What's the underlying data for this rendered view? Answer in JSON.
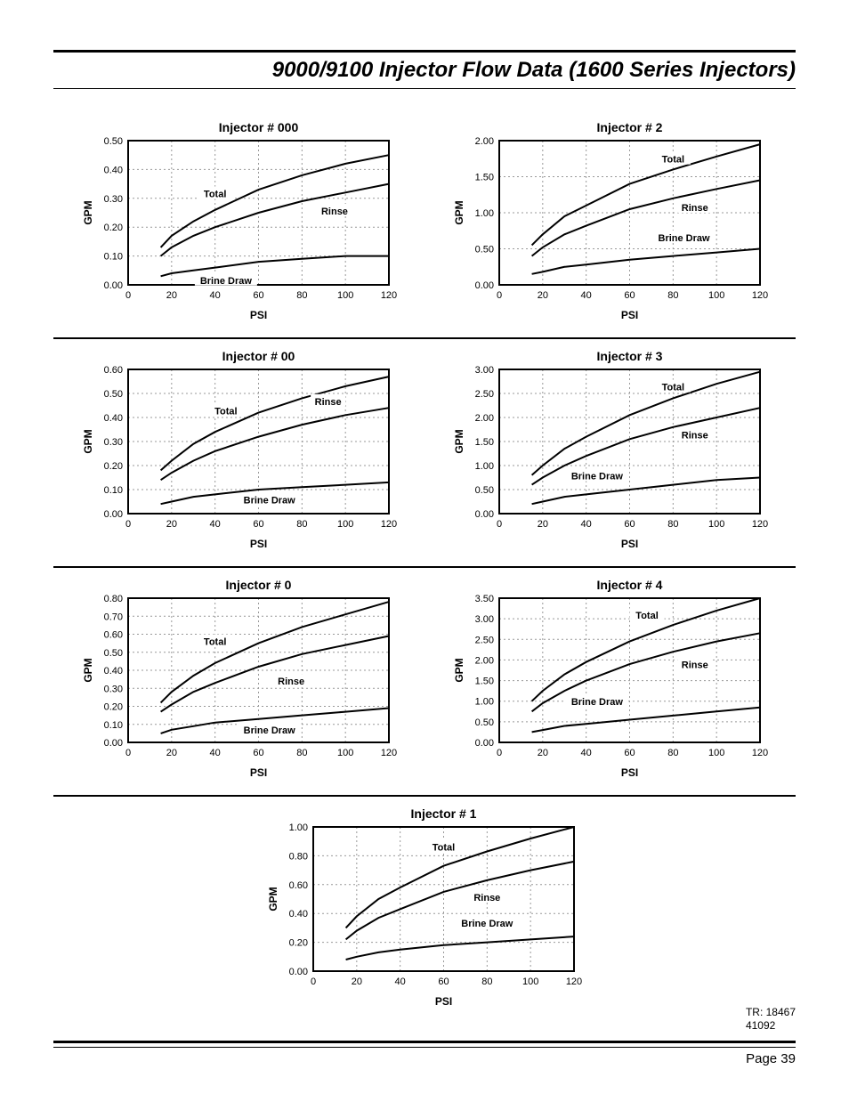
{
  "page_title": "9000/9100 Injector Flow Data (1600 Series Injectors)",
  "chart_colors": {
    "line": "#000000",
    "grid": "#999999",
    "bg": "#ffffff",
    "text": "#000000"
  },
  "axis_titles": {
    "x": "PSI",
    "y": "GPM"
  },
  "series_labels": {
    "total": "Total",
    "rinse": "Rinse",
    "brine": "Brine Draw"
  },
  "xlim": [
    0,
    120
  ],
  "xticks": [
    0,
    20,
    40,
    60,
    80,
    100,
    120
  ],
  "title_fontsize": 14,
  "axis_fontsize": 12,
  "tick_fontsize": 11,
  "label_fontsize": 11,
  "line_width": 2,
  "charts": [
    {
      "id": "inj000",
      "title": "Injector # 000",
      "ylim": [
        0,
        0.5
      ],
      "yticks": [
        0.0,
        0.1,
        0.2,
        0.3,
        0.4,
        0.5
      ],
      "ytick_decimals": 2,
      "series": {
        "total": {
          "x": [
            15,
            20,
            30,
            40,
            60,
            80,
            100,
            120
          ],
          "y": [
            0.13,
            0.17,
            0.22,
            0.26,
            0.33,
            0.38,
            0.42,
            0.45
          ]
        },
        "rinse": {
          "x": [
            15,
            20,
            30,
            40,
            60,
            80,
            100,
            120
          ],
          "y": [
            0.1,
            0.13,
            0.17,
            0.2,
            0.25,
            0.29,
            0.32,
            0.35
          ]
        },
        "brine": {
          "x": [
            15,
            20,
            30,
            40,
            60,
            80,
            100,
            120
          ],
          "y": [
            0.03,
            0.04,
            0.05,
            0.06,
            0.08,
            0.09,
            0.1,
            0.1
          ]
        }
      },
      "label_pos": {
        "total": [
          40,
          0.31
        ],
        "rinse": [
          95,
          0.25
        ],
        "brine": [
          45,
          0.01
        ]
      }
    },
    {
      "id": "inj2",
      "title": "Injector # 2",
      "ylim": [
        0,
        2.0
      ],
      "yticks": [
        0.0,
        0.5,
        1.0,
        1.5,
        2.0
      ],
      "ytick_decimals": 2,
      "series": {
        "total": {
          "x": [
            15,
            20,
            30,
            40,
            60,
            80,
            100,
            120
          ],
          "y": [
            0.55,
            0.7,
            0.95,
            1.1,
            1.4,
            1.6,
            1.78,
            1.95
          ]
        },
        "rinse": {
          "x": [
            15,
            20,
            30,
            40,
            60,
            80,
            100,
            120
          ],
          "y": [
            0.4,
            0.52,
            0.7,
            0.82,
            1.05,
            1.2,
            1.33,
            1.45
          ]
        },
        "brine": {
          "x": [
            15,
            20,
            30,
            40,
            60,
            80,
            100,
            120
          ],
          "y": [
            0.15,
            0.18,
            0.25,
            0.28,
            0.35,
            0.4,
            0.45,
            0.5
          ]
        }
      },
      "label_pos": {
        "total": [
          80,
          1.72
        ],
        "rinse": [
          90,
          1.05
        ],
        "brine": [
          85,
          0.63
        ]
      }
    },
    {
      "id": "inj00",
      "title": "Injector # 00",
      "ylim": [
        0,
        0.6
      ],
      "yticks": [
        0.0,
        0.1,
        0.2,
        0.3,
        0.4,
        0.5,
        0.6
      ],
      "ytick_decimals": 2,
      "series": {
        "total": {
          "x": [
            15,
            20,
            30,
            40,
            60,
            80,
            100,
            120
          ],
          "y": [
            0.18,
            0.22,
            0.29,
            0.34,
            0.42,
            0.48,
            0.53,
            0.57
          ]
        },
        "rinse": {
          "x": [
            15,
            20,
            30,
            40,
            60,
            80,
            100,
            120
          ],
          "y": [
            0.14,
            0.17,
            0.22,
            0.26,
            0.32,
            0.37,
            0.41,
            0.44
          ]
        },
        "brine": {
          "x": [
            15,
            20,
            30,
            40,
            60,
            80,
            100,
            120
          ],
          "y": [
            0.04,
            0.05,
            0.07,
            0.08,
            0.1,
            0.11,
            0.12,
            0.13
          ]
        }
      },
      "label_pos": {
        "total": [
          45,
          0.42
        ],
        "rinse": [
          92,
          0.46
        ],
        "brine": [
          65,
          0.05
        ]
      }
    },
    {
      "id": "inj3",
      "title": "Injector # 3",
      "ylim": [
        0,
        3.0
      ],
      "yticks": [
        0.0,
        0.5,
        1.0,
        1.5,
        2.0,
        2.5,
        3.0
      ],
      "ytick_decimals": 2,
      "series": {
        "total": {
          "x": [
            15,
            20,
            30,
            40,
            60,
            80,
            100,
            120
          ],
          "y": [
            0.8,
            1.0,
            1.35,
            1.6,
            2.05,
            2.4,
            2.7,
            2.95
          ]
        },
        "rinse": {
          "x": [
            15,
            20,
            30,
            40,
            60,
            80,
            100,
            120
          ],
          "y": [
            0.6,
            0.75,
            1.0,
            1.2,
            1.55,
            1.8,
            2.0,
            2.2
          ]
        },
        "brine": {
          "x": [
            15,
            20,
            30,
            40,
            60,
            80,
            100,
            120
          ],
          "y": [
            0.2,
            0.25,
            0.35,
            0.4,
            0.5,
            0.6,
            0.7,
            0.75
          ]
        }
      },
      "label_pos": {
        "total": [
          80,
          2.6
        ],
        "rinse": [
          90,
          1.6
        ],
        "brine": [
          45,
          0.75
        ]
      }
    },
    {
      "id": "inj0",
      "title": "Injector # 0",
      "ylim": [
        0,
        0.8
      ],
      "yticks": [
        0.0,
        0.1,
        0.2,
        0.3,
        0.4,
        0.5,
        0.6,
        0.7,
        0.8
      ],
      "ytick_decimals": 2,
      "series": {
        "total": {
          "x": [
            15,
            20,
            30,
            40,
            60,
            80,
            100,
            120
          ],
          "y": [
            0.22,
            0.28,
            0.37,
            0.44,
            0.55,
            0.64,
            0.71,
            0.78
          ]
        },
        "rinse": {
          "x": [
            15,
            20,
            30,
            40,
            60,
            80,
            100,
            120
          ],
          "y": [
            0.17,
            0.21,
            0.28,
            0.33,
            0.42,
            0.49,
            0.54,
            0.59
          ]
        },
        "brine": {
          "x": [
            15,
            20,
            30,
            40,
            60,
            80,
            100,
            120
          ],
          "y": [
            0.05,
            0.07,
            0.09,
            0.11,
            0.13,
            0.15,
            0.17,
            0.19
          ]
        }
      },
      "label_pos": {
        "total": [
          40,
          0.55
        ],
        "rinse": [
          75,
          0.33
        ],
        "brine": [
          65,
          0.06
        ]
      }
    },
    {
      "id": "inj4",
      "title": "Injector # 4",
      "ylim": [
        0,
        3.5
      ],
      "yticks": [
        0.0,
        0.5,
        1.0,
        1.5,
        2.0,
        2.5,
        3.0,
        3.5
      ],
      "ytick_decimals": 2,
      "series": {
        "total": {
          "x": [
            15,
            20,
            30,
            40,
            60,
            80,
            100,
            120
          ],
          "y": [
            1.0,
            1.25,
            1.65,
            1.95,
            2.45,
            2.85,
            3.2,
            3.5
          ]
        },
        "rinse": {
          "x": [
            15,
            20,
            30,
            40,
            60,
            80,
            100,
            120
          ],
          "y": [
            0.75,
            0.95,
            1.25,
            1.5,
            1.9,
            2.2,
            2.45,
            2.65
          ]
        },
        "brine": {
          "x": [
            15,
            20,
            30,
            40,
            60,
            80,
            100,
            120
          ],
          "y": [
            0.25,
            0.3,
            0.4,
            0.45,
            0.55,
            0.65,
            0.75,
            0.85
          ]
        }
      },
      "label_pos": {
        "total": [
          68,
          3.05
        ],
        "rinse": [
          90,
          1.85
        ],
        "brine": [
          45,
          0.95
        ]
      }
    },
    {
      "id": "inj1",
      "title": "Injector # 1",
      "ylim": [
        0,
        1.0
      ],
      "yticks": [
        0.0,
        0.2,
        0.4,
        0.6,
        0.8,
        1.0
      ],
      "ytick_decimals": 2,
      "series": {
        "total": {
          "x": [
            15,
            20,
            30,
            40,
            60,
            80,
            100,
            120
          ],
          "y": [
            0.3,
            0.38,
            0.5,
            0.58,
            0.73,
            0.83,
            0.92,
            1.0
          ]
        },
        "rinse": {
          "x": [
            15,
            20,
            30,
            40,
            60,
            80,
            100,
            120
          ],
          "y": [
            0.22,
            0.28,
            0.37,
            0.43,
            0.55,
            0.63,
            0.7,
            0.76
          ]
        },
        "brine": {
          "x": [
            15,
            20,
            30,
            40,
            60,
            80,
            100,
            120
          ],
          "y": [
            0.08,
            0.1,
            0.13,
            0.15,
            0.18,
            0.2,
            0.22,
            0.24
          ]
        }
      },
      "label_pos": {
        "total": [
          60,
          0.85
        ],
        "rinse": [
          80,
          0.5
        ],
        "brine": [
          80,
          0.32
        ]
      }
    }
  ],
  "footer": {
    "tr_line1": "TR: 18467",
    "tr_line2": "41092",
    "page_num": "Page 39"
  }
}
